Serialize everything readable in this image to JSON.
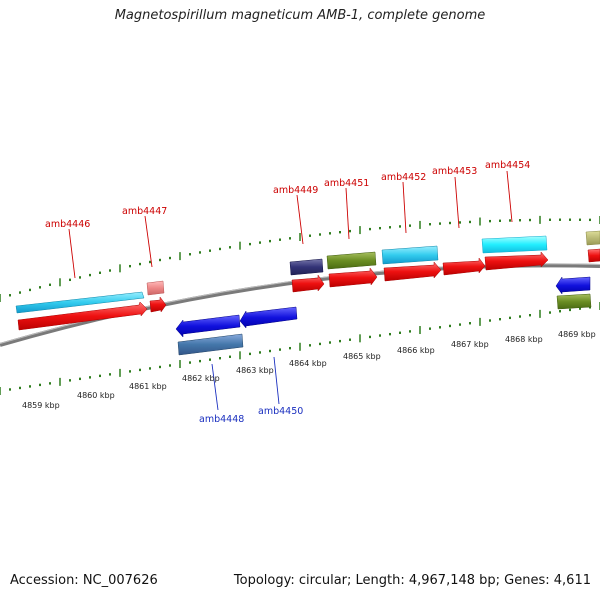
{
  "title": "Magnetospirillum magneticum AMB-1, complete genome",
  "accession": "Accession: NC_007626",
  "summary": "Topology: circular; Length: 4,967,148 bp; Genes: 4,611",
  "scale_labels": [
    "4859 kbp",
    "4860 kbp",
    "4861 kbp",
    "4862 kbp",
    "4863 kbp",
    "4864 kbp",
    "4865 kbp",
    "4866 kbp",
    "4867 kbp",
    "4868 kbp",
    "4869 kbp"
  ],
  "gene_labels_top": [
    "amb4446",
    "amb4447",
    "amb4449",
    "amb4451",
    "amb4452",
    "amb4453",
    "amb4454"
  ],
  "gene_labels_bottom": [
    "amb4448",
    "amb4450"
  ],
  "colors": {
    "backbone": "#8a8a8a",
    "tick_green": "#2e7d1e",
    "red": "#ee1111",
    "cyan": "#33ccee",
    "blue": "#1111dd",
    "steel": "#4477aa",
    "olive": "#6b8e23",
    "navy": "#333377",
    "pink": "#ee8888",
    "label_red": "#cc0000",
    "label_blue": "#1a2fbf"
  }
}
